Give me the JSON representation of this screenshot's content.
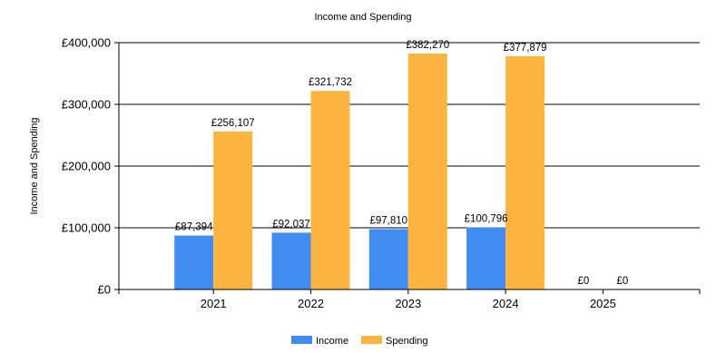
{
  "chart_data": {
    "type": "bar",
    "title": "Income and Spending",
    "xlabel": "",
    "ylabel": "Income and Spending",
    "categories": [
      "2021",
      "2022",
      "2023",
      "2024",
      "2025"
    ],
    "series": [
      {
        "name": "Income",
        "color": "#418CF0",
        "values": [
          87394,
          92037,
          97810,
          100796,
          0
        ],
        "labels": [
          "£87,394",
          "£92,037",
          "£97,810",
          "£100,796",
          "£0"
        ]
      },
      {
        "name": "Spending",
        "color": "#FCB441",
        "values": [
          256107,
          321732,
          382270,
          377879,
          0
        ],
        "labels": [
          "£256,107",
          "£321,732",
          "£382,270",
          "£377,879",
          "£0"
        ]
      }
    ],
    "ylim": [
      0,
      400000
    ],
    "yticks": [
      0,
      100000,
      200000,
      300000,
      400000
    ],
    "ytick_labels": [
      "£0",
      "£100,000",
      "£200,000",
      "£300,000",
      "£400,000"
    ],
    "grid": true,
    "legend_position": "bottom-center"
  }
}
